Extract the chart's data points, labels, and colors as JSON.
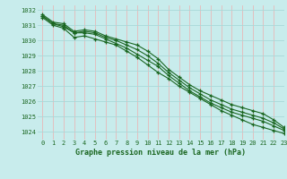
{
  "title": "Graphe pression niveau de la mer (hPa)",
  "bg_color": "#c8ecec",
  "grid_color_h": "#a8d8d8",
  "grid_color_v": "#e8b8b8",
  "line_color": "#1a6620",
  "xlim": [
    -0.5,
    23
  ],
  "ylim": [
    1023.5,
    1032.3
  ],
  "yticks": [
    1024,
    1025,
    1026,
    1027,
    1028,
    1029,
    1030,
    1031,
    1032
  ],
  "xticks": [
    0,
    1,
    2,
    3,
    4,
    5,
    6,
    7,
    8,
    9,
    10,
    11,
    12,
    13,
    14,
    15,
    16,
    17,
    18,
    19,
    20,
    21,
    22,
    23
  ],
  "series": [
    [
      1031.5,
      1031.0,
      1030.8,
      1030.2,
      1030.3,
      1030.1,
      1029.9,
      1029.7,
      1029.3,
      1028.9,
      1028.4,
      1027.9,
      1027.5,
      1027.0,
      1026.6,
      1026.2,
      1025.8,
      1025.4,
      1025.1,
      1024.8,
      1024.5,
      1024.3,
      1024.1,
      1023.9
    ],
    [
      1031.6,
      1031.1,
      1030.9,
      1030.5,
      1030.5,
      1030.4,
      1030.1,
      1029.8,
      1029.5,
      1029.1,
      1028.7,
      1028.3,
      1027.7,
      1027.2,
      1026.7,
      1026.3,
      1025.9,
      1025.6,
      1025.3,
      1025.1,
      1024.9,
      1024.7,
      1024.4,
      1024.1
    ],
    [
      1031.6,
      1031.1,
      1031.0,
      1030.5,
      1030.6,
      1030.5,
      1030.2,
      1030.0,
      1029.7,
      1029.4,
      1029.0,
      1028.5,
      1027.9,
      1027.4,
      1026.9,
      1026.5,
      1026.1,
      1025.8,
      1025.5,
      1025.3,
      1025.1,
      1024.9,
      1024.6,
      1024.2
    ],
    [
      1031.7,
      1031.2,
      1031.1,
      1030.6,
      1030.7,
      1030.6,
      1030.3,
      1030.1,
      1029.9,
      1029.7,
      1029.3,
      1028.8,
      1028.1,
      1027.6,
      1027.1,
      1026.7,
      1026.4,
      1026.1,
      1025.8,
      1025.6,
      1025.4,
      1025.2,
      1024.8,
      1024.3
    ]
  ]
}
